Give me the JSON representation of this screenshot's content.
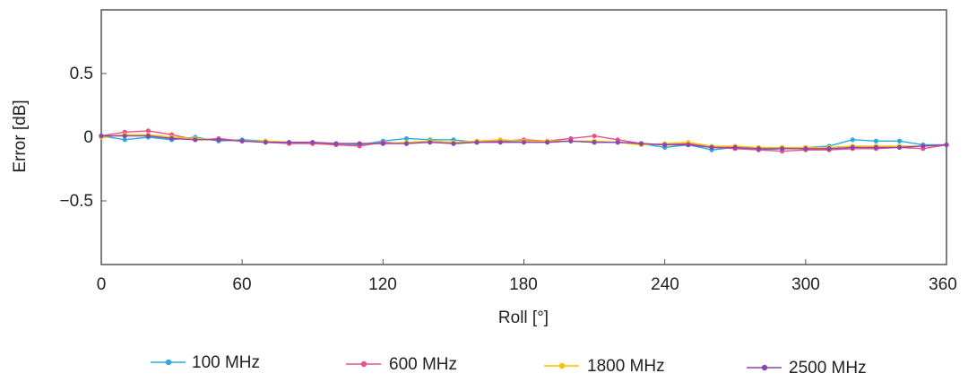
{
  "chart_data": {
    "type": "line",
    "title": "",
    "xlabel": "Roll [°]",
    "ylabel": "Error [dB]",
    "xlim": [
      0,
      360
    ],
    "ylim": [
      -1.0,
      1.0
    ],
    "xticks": [
      "0",
      "60",
      "120",
      "180",
      "240",
      "300",
      "360"
    ],
    "yticks": [
      "0.5",
      "0",
      "−0.5"
    ],
    "grid": false,
    "legend_position": "bottom",
    "x": [
      0,
      10,
      20,
      30,
      40,
      50,
      60,
      70,
      80,
      90,
      100,
      110,
      120,
      130,
      140,
      150,
      160,
      170,
      180,
      190,
      200,
      210,
      220,
      230,
      240,
      250,
      260,
      270,
      280,
      290,
      300,
      310,
      320,
      330,
      340,
      350,
      360
    ],
    "series": [
      {
        "name": "100 MHz",
        "color": "#29abe2",
        "values": [
          0.01,
          -0.02,
          0.0,
          -0.02,
          0.0,
          -0.03,
          -0.02,
          -0.03,
          -0.04,
          -0.05,
          -0.05,
          -0.06,
          -0.03,
          -0.01,
          -0.02,
          -0.02,
          -0.04,
          -0.03,
          -0.03,
          -0.04,
          -0.03,
          -0.04,
          -0.04,
          -0.05,
          -0.08,
          -0.06,
          -0.1,
          -0.08,
          -0.1,
          -0.09,
          -0.08,
          -0.07,
          -0.02,
          -0.03,
          -0.03,
          -0.06,
          -0.06
        ]
      },
      {
        "name": "600 MHz",
        "color": "#e8508a",
        "values": [
          0.01,
          0.04,
          0.05,
          0.02,
          -0.02,
          -0.01,
          -0.03,
          -0.04,
          -0.05,
          -0.05,
          -0.06,
          -0.07,
          -0.04,
          -0.05,
          -0.03,
          -0.04,
          -0.04,
          -0.03,
          -0.02,
          -0.03,
          -0.01,
          0.01,
          -0.02,
          -0.05,
          -0.06,
          -0.05,
          -0.08,
          -0.09,
          -0.1,
          -0.11,
          -0.1,
          -0.1,
          -0.09,
          -0.09,
          -0.08,
          -0.09,
          -0.06
        ]
      },
      {
        "name": "1800 MHz",
        "color": "#f2c300",
        "values": [
          0.0,
          0.02,
          0.02,
          0.0,
          -0.01,
          -0.02,
          -0.03,
          -0.03,
          -0.04,
          -0.04,
          -0.05,
          -0.05,
          -0.05,
          -0.04,
          -0.03,
          -0.04,
          -0.03,
          -0.02,
          -0.03,
          -0.03,
          -0.03,
          -0.03,
          -0.04,
          -0.06,
          -0.05,
          -0.04,
          -0.07,
          -0.07,
          -0.08,
          -0.08,
          -0.08,
          -0.08,
          -0.07,
          -0.07,
          -0.07,
          -0.07,
          -0.06
        ]
      },
      {
        "name": "2500 MHz",
        "color": "#8e44ad",
        "values": [
          0.01,
          0.01,
          0.01,
          -0.01,
          -0.02,
          -0.02,
          -0.03,
          -0.04,
          -0.04,
          -0.04,
          -0.05,
          -0.05,
          -0.05,
          -0.05,
          -0.04,
          -0.05,
          -0.04,
          -0.04,
          -0.04,
          -0.04,
          -0.03,
          -0.04,
          -0.04,
          -0.05,
          -0.06,
          -0.06,
          -0.08,
          -0.08,
          -0.09,
          -0.09,
          -0.09,
          -0.09,
          -0.08,
          -0.08,
          -0.08,
          -0.07,
          -0.06
        ]
      }
    ]
  }
}
